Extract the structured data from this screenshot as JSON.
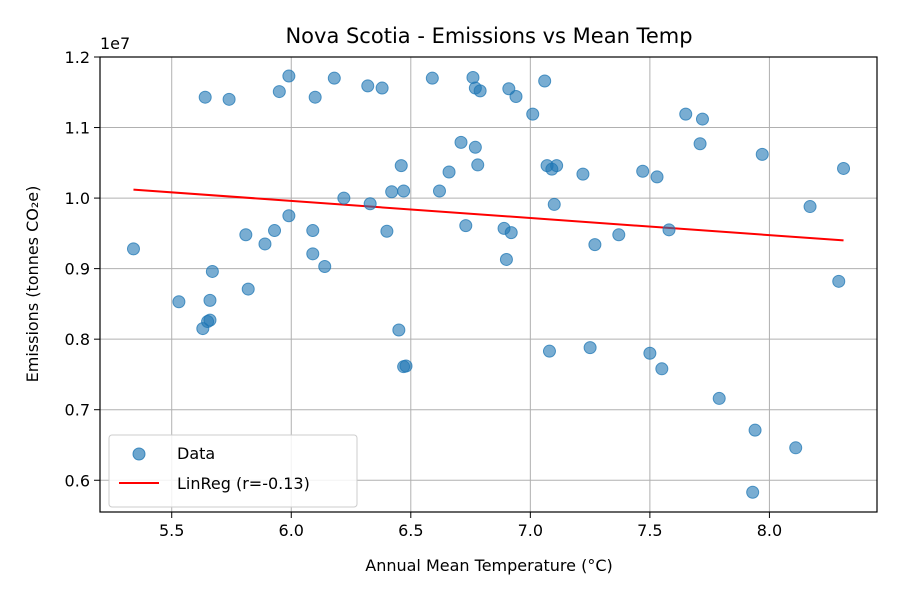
{
  "chart_data": {
    "type": "scatter",
    "title": "Nova Scotia - Emissions vs Mean Temp",
    "xlabel": "Annual Mean Temperature (°C)",
    "ylabel": "Emissions (tonnes CO₂e)",
    "y_multiplier_label": "1e7",
    "xlim": [
      5.2,
      8.45
    ],
    "ylim": [
      5.55,
      12.0
    ],
    "x_ticks": [
      5.5,
      6.0,
      6.5,
      7.0,
      7.5,
      8.0
    ],
    "x_tick_labels": [
      "5.5",
      "6.0",
      "6.5",
      "7.0",
      "7.5",
      "8.0"
    ],
    "y_ticks": [
      6.0,
      6.5,
      7.0,
      7.5,
      8.0,
      8.5,
      9.0,
      9.5,
      10.0,
      10.5,
      11.0,
      11.5,
      12.0
    ],
    "y_tick_labels": [
      "0.6",
      "0.7",
      "0.8",
      "0.9",
      "1.0",
      "1.1",
      "1.2"
    ],
    "y_tick_label_values": [
      6.0,
      7.0,
      8.0,
      9.0,
      10.0,
      11.0,
      12.0
    ],
    "grid": true,
    "legend_position": "lower-left",
    "y_unit_note": "y values expressed in millions of tonnes (×1e6); axis shows ×1e7",
    "series": [
      {
        "name": "Data",
        "kind": "scatter",
        "color": "#1f77b4",
        "points": [
          [
            5.34,
            9.28
          ],
          [
            5.53,
            8.53
          ],
          [
            5.63,
            8.15
          ],
          [
            5.65,
            8.25
          ],
          [
            5.66,
            8.27
          ],
          [
            5.66,
            8.55
          ],
          [
            5.64,
            11.43
          ],
          [
            5.67,
            8.96
          ],
          [
            5.74,
            11.4
          ],
          [
            5.81,
            9.48
          ],
          [
            5.82,
            8.71
          ],
          [
            5.89,
            9.35
          ],
          [
            5.93,
            9.54
          ],
          [
            5.95,
            11.51
          ],
          [
            5.99,
            11.73
          ],
          [
            5.99,
            9.75
          ],
          [
            6.09,
            9.54
          ],
          [
            6.09,
            9.21
          ],
          [
            6.1,
            11.43
          ],
          [
            6.14,
            9.03
          ],
          [
            6.18,
            11.7
          ],
          [
            6.22,
            10.0
          ],
          [
            6.32,
            11.59
          ],
          [
            6.33,
            9.92
          ],
          [
            6.38,
            11.56
          ],
          [
            6.4,
            9.53
          ],
          [
            6.42,
            10.09
          ],
          [
            6.45,
            8.13
          ],
          [
            6.46,
            10.46
          ],
          [
            6.47,
            7.61
          ],
          [
            6.47,
            10.1
          ],
          [
            6.48,
            7.62
          ],
          [
            6.59,
            11.7
          ],
          [
            6.62,
            10.1
          ],
          [
            6.66,
            10.37
          ],
          [
            6.71,
            10.79
          ],
          [
            6.73,
            9.61
          ],
          [
            6.76,
            11.71
          ],
          [
            6.77,
            10.72
          ],
          [
            6.77,
            11.56
          ],
          [
            6.78,
            10.47
          ],
          [
            6.79,
            11.52
          ],
          [
            6.89,
            9.57
          ],
          [
            6.9,
            9.13
          ],
          [
            6.91,
            11.55
          ],
          [
            6.92,
            9.51
          ],
          [
            6.94,
            11.44
          ],
          [
            7.01,
            11.19
          ],
          [
            7.06,
            11.66
          ],
          [
            7.07,
            10.46
          ],
          [
            7.08,
            7.83
          ],
          [
            7.09,
            10.41
          ],
          [
            7.1,
            9.91
          ],
          [
            7.11,
            10.46
          ],
          [
            7.22,
            10.34
          ],
          [
            7.25,
            7.88
          ],
          [
            7.27,
            9.34
          ],
          [
            7.37,
            9.48
          ],
          [
            7.47,
            10.38
          ],
          [
            7.5,
            7.8
          ],
          [
            7.53,
            10.3
          ],
          [
            7.55,
            7.58
          ],
          [
            7.58,
            9.55
          ],
          [
            7.65,
            11.19
          ],
          [
            7.71,
            10.77
          ],
          [
            7.72,
            11.12
          ],
          [
            7.79,
            7.16
          ],
          [
            7.94,
            6.71
          ],
          [
            7.93,
            5.83
          ],
          [
            7.97,
            10.62
          ],
          [
            8.11,
            6.46
          ],
          [
            8.17,
            9.88
          ],
          [
            8.29,
            8.82
          ],
          [
            8.31,
            10.42
          ]
        ]
      },
      {
        "name": "LinReg (r=-0.13)",
        "kind": "line",
        "color": "#ff0000",
        "points": [
          [
            5.34,
            10.12
          ],
          [
            8.31,
            9.4
          ]
        ]
      }
    ]
  }
}
